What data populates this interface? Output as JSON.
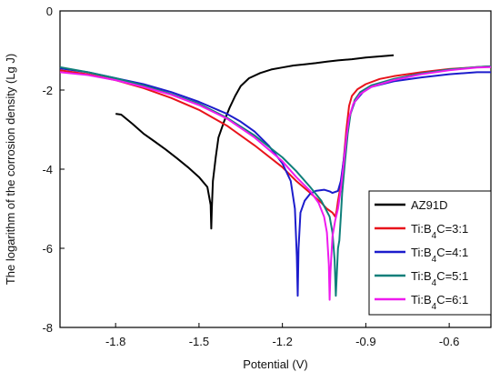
{
  "chart_data": {
    "type": "line",
    "title": "",
    "xlabel": "Potential (V)",
    "ylabel": "The logarithm of the corrosion density (Lg J)",
    "xlim": [
      -2.0,
      -0.45
    ],
    "ylim": [
      -8,
      0
    ],
    "xticks": [
      -1.8,
      -1.5,
      -1.2,
      -0.9,
      -0.6
    ],
    "xtick_labels": [
      "-1.8",
      "-1.5",
      "-1.2",
      "-0.9",
      "-0.6"
    ],
    "yticks": [
      0,
      -2,
      -4,
      -6,
      -8
    ],
    "ytick_labels": [
      "0",
      "-2",
      "-4",
      "-6",
      "-8"
    ],
    "grid": false,
    "legend_position": "bottom-right",
    "series": [
      {
        "name": "AZ91D",
        "legend_main": "AZ91D",
        "legend_sub": "",
        "legend_rest": "",
        "color": "#000000",
        "points": [
          [
            -1.8,
            -2.6
          ],
          [
            -1.78,
            -2.62
          ],
          [
            -1.74,
            -2.85
          ],
          [
            -1.7,
            -3.1
          ],
          [
            -1.66,
            -3.3
          ],
          [
            -1.62,
            -3.5
          ],
          [
            -1.58,
            -3.72
          ],
          [
            -1.54,
            -3.95
          ],
          [
            -1.5,
            -4.2
          ],
          [
            -1.47,
            -4.45
          ],
          [
            -1.458,
            -4.9
          ],
          [
            -1.456,
            -5.5
          ],
          [
            -1.454,
            -5.0
          ],
          [
            -1.45,
            -4.3
          ],
          [
            -1.44,
            -3.7
          ],
          [
            -1.43,
            -3.2
          ],
          [
            -1.41,
            -2.8
          ],
          [
            -1.39,
            -2.45
          ],
          [
            -1.37,
            -2.15
          ],
          [
            -1.35,
            -1.9
          ],
          [
            -1.32,
            -1.7
          ],
          [
            -1.28,
            -1.57
          ],
          [
            -1.24,
            -1.48
          ],
          [
            -1.2,
            -1.43
          ],
          [
            -1.16,
            -1.38
          ],
          [
            -1.12,
            -1.35
          ],
          [
            -1.08,
            -1.32
          ],
          [
            -1.04,
            -1.28
          ],
          [
            -1.0,
            -1.25
          ],
          [
            -0.95,
            -1.22
          ],
          [
            -0.9,
            -1.18
          ],
          [
            -0.85,
            -1.15
          ],
          [
            -0.8,
            -1.12
          ]
        ]
      },
      {
        "name": "Ti:B4C=3:1",
        "legend_main": "Ti:B",
        "legend_sub": "4",
        "legend_rest": "C=3:1",
        "color": "#e8131b",
        "points": [
          [
            -2.0,
            -1.5
          ],
          [
            -1.9,
            -1.6
          ],
          [
            -1.8,
            -1.75
          ],
          [
            -1.7,
            -1.95
          ],
          [
            -1.6,
            -2.2
          ],
          [
            -1.5,
            -2.5
          ],
          [
            -1.4,
            -2.9
          ],
          [
            -1.3,
            -3.4
          ],
          [
            -1.2,
            -3.95
          ],
          [
            -1.15,
            -4.3
          ],
          [
            -1.1,
            -4.6
          ],
          [
            -1.06,
            -4.85
          ],
          [
            -1.04,
            -5.0
          ],
          [
            -1.02,
            -5.1
          ],
          [
            -1.01,
            -5.2
          ],
          [
            -1.005,
            -5.05
          ],
          [
            -1.0,
            -4.8
          ],
          [
            -0.99,
            -4.4
          ],
          [
            -0.98,
            -3.8
          ],
          [
            -0.97,
            -3.0
          ],
          [
            -0.96,
            -2.4
          ],
          [
            -0.95,
            -2.15
          ],
          [
            -0.93,
            -1.98
          ],
          [
            -0.9,
            -1.85
          ],
          [
            -0.85,
            -1.72
          ],
          [
            -0.8,
            -1.65
          ],
          [
            -0.7,
            -1.55
          ],
          [
            -0.6,
            -1.47
          ],
          [
            -0.5,
            -1.42
          ],
          [
            -0.45,
            -1.4
          ]
        ]
      },
      {
        "name": "Ti:B4C=4:1",
        "legend_main": "Ti:B",
        "legend_sub": "4",
        "legend_rest": "C=4:1",
        "color": "#1c1ccc",
        "points": [
          [
            -2.0,
            -1.45
          ],
          [
            -1.9,
            -1.55
          ],
          [
            -1.8,
            -1.7
          ],
          [
            -1.7,
            -1.85
          ],
          [
            -1.6,
            -2.05
          ],
          [
            -1.5,
            -2.3
          ],
          [
            -1.4,
            -2.6
          ],
          [
            -1.35,
            -2.8
          ],
          [
            -1.3,
            -3.05
          ],
          [
            -1.25,
            -3.4
          ],
          [
            -1.2,
            -3.85
          ],
          [
            -1.17,
            -4.3
          ],
          [
            -1.155,
            -5.0
          ],
          [
            -1.148,
            -6.2
          ],
          [
            -1.145,
            -7.2
          ],
          [
            -1.142,
            -6.0
          ],
          [
            -1.135,
            -5.1
          ],
          [
            -1.12,
            -4.8
          ],
          [
            -1.1,
            -4.62
          ],
          [
            -1.08,
            -4.55
          ],
          [
            -1.05,
            -4.52
          ],
          [
            -1.03,
            -4.56
          ],
          [
            -1.02,
            -4.6
          ],
          [
            -1.0,
            -4.55
          ],
          [
            -0.99,
            -4.3
          ],
          [
            -0.98,
            -3.8
          ],
          [
            -0.97,
            -3.2
          ],
          [
            -0.96,
            -2.7
          ],
          [
            -0.94,
            -2.3
          ],
          [
            -0.91,
            -2.05
          ],
          [
            -0.88,
            -1.92
          ],
          [
            -0.8,
            -1.78
          ],
          [
            -0.7,
            -1.68
          ],
          [
            -0.6,
            -1.6
          ],
          [
            -0.5,
            -1.55
          ],
          [
            -0.45,
            -1.55
          ]
        ]
      },
      {
        "name": "Ti:B4C=5:1",
        "legend_main": "Ti:B",
        "legend_sub": "4",
        "legend_rest": "C=5:1",
        "color": "#0f7f7a",
        "points": [
          [
            -2.0,
            -1.42
          ],
          [
            -1.9,
            -1.55
          ],
          [
            -1.8,
            -1.7
          ],
          [
            -1.7,
            -1.88
          ],
          [
            -1.6,
            -2.1
          ],
          [
            -1.5,
            -2.35
          ],
          [
            -1.4,
            -2.7
          ],
          [
            -1.3,
            -3.15
          ],
          [
            -1.2,
            -3.7
          ],
          [
            -1.15,
            -4.05
          ],
          [
            -1.1,
            -4.45
          ],
          [
            -1.06,
            -4.8
          ],
          [
            -1.03,
            -5.2
          ],
          [
            -1.02,
            -5.6
          ],
          [
            -1.012,
            -6.3
          ],
          [
            -1.008,
            -7.2
          ],
          [
            -1.004,
            -6.6
          ],
          [
            -1.0,
            -6.0
          ],
          [
            -0.995,
            -5.8
          ],
          [
            -0.99,
            -5.2
          ],
          [
            -0.985,
            -4.6
          ],
          [
            -0.975,
            -3.8
          ],
          [
            -0.965,
            -3.1
          ],
          [
            -0.955,
            -2.6
          ],
          [
            -0.94,
            -2.25
          ],
          [
            -0.92,
            -2.05
          ],
          [
            -0.88,
            -1.88
          ],
          [
            -0.8,
            -1.72
          ],
          [
            -0.7,
            -1.58
          ],
          [
            -0.6,
            -1.48
          ],
          [
            -0.5,
            -1.42
          ],
          [
            -0.45,
            -1.4
          ]
        ]
      },
      {
        "name": "Ti:B4C=6:1",
        "legend_main": "Ti:B",
        "legend_sub": "4",
        "legend_rest": "C=6:1",
        "color": "#ee1bee",
        "points": [
          [
            -2.0,
            -1.55
          ],
          [
            -1.9,
            -1.62
          ],
          [
            -1.8,
            -1.75
          ],
          [
            -1.7,
            -1.92
          ],
          [
            -1.6,
            -2.12
          ],
          [
            -1.5,
            -2.38
          ],
          [
            -1.4,
            -2.72
          ],
          [
            -1.3,
            -3.2
          ],
          [
            -1.2,
            -3.8
          ],
          [
            -1.15,
            -4.2
          ],
          [
            -1.1,
            -4.55
          ],
          [
            -1.07,
            -4.85
          ],
          [
            -1.05,
            -5.2
          ],
          [
            -1.04,
            -5.6
          ],
          [
            -1.033,
            -6.4
          ],
          [
            -1.03,
            -7.3
          ],
          [
            -1.027,
            -6.6
          ],
          [
            -1.02,
            -5.7
          ],
          [
            -1.01,
            -5.3
          ],
          [
            -1.0,
            -5.0
          ],
          [
            -0.99,
            -4.5
          ],
          [
            -0.98,
            -3.9
          ],
          [
            -0.97,
            -3.2
          ],
          [
            -0.96,
            -2.7
          ],
          [
            -0.945,
            -2.35
          ],
          [
            -0.92,
            -2.1
          ],
          [
            -0.88,
            -1.92
          ],
          [
            -0.8,
            -1.75
          ],
          [
            -0.7,
            -1.6
          ],
          [
            -0.6,
            -1.5
          ],
          [
            -0.5,
            -1.43
          ],
          [
            -0.45,
            -1.42
          ]
        ]
      }
    ]
  }
}
